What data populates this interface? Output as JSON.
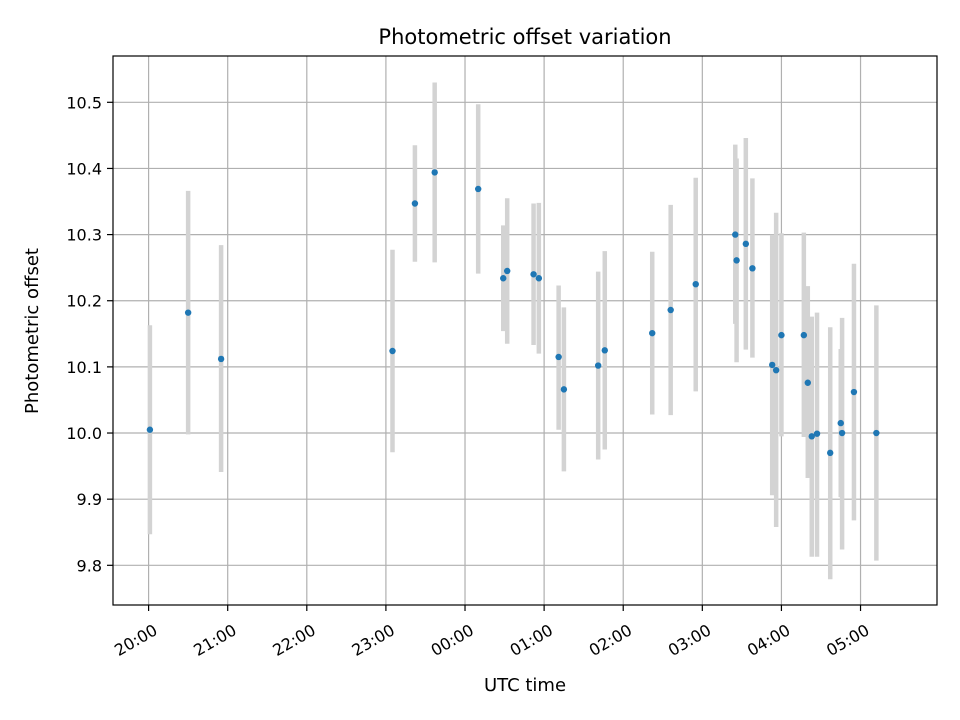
{
  "chart_data": {
    "type": "scatter",
    "title": "Photometric offset variation",
    "xlabel": "UTC time",
    "ylabel": "Photometric offset",
    "x_tick_labels": [
      "20:00",
      "21:00",
      "22:00",
      "23:00",
      "00:00",
      "01:00",
      "02:00",
      "03:00",
      "04:00",
      "05:00"
    ],
    "y_tick_labels": [
      "9.8",
      "9.9",
      "10.0",
      "10.1",
      "10.2",
      "10.3",
      "10.4",
      "10.5"
    ],
    "y_ticks": [
      9.8,
      9.9,
      10.0,
      10.1,
      10.2,
      10.3,
      10.4,
      10.5
    ],
    "ylim": [
      9.74,
      10.57
    ],
    "xlim": [
      "19:33",
      "05:58"
    ],
    "grid": true,
    "colors": {
      "point": "#1f77b4",
      "errorbar": "#d3d3d3",
      "grid": "#b0b0b0",
      "axis": "#000000"
    },
    "points": [
      {
        "x": "20:01",
        "y": 10.005,
        "yerr_low": 9.847,
        "yerr_high": 10.163
      },
      {
        "x": "20:30",
        "y": 10.182,
        "yerr_low": 9.998,
        "yerr_high": 10.366
      },
      {
        "x": "20:55",
        "y": 10.112,
        "yerr_low": 9.941,
        "yerr_high": 10.284
      },
      {
        "x": "23:05",
        "y": 10.124,
        "yerr_low": 9.971,
        "yerr_high": 10.277
      },
      {
        "x": "23:22",
        "y": 10.347,
        "yerr_low": 10.259,
        "yerr_high": 10.435
      },
      {
        "x": "23:37",
        "y": 10.394,
        "yerr_low": 10.258,
        "yerr_high": 10.53
      },
      {
        "x": "00:10",
        "y": 10.369,
        "yerr_low": 10.241,
        "yerr_high": 10.497
      },
      {
        "x": "00:29",
        "y": 10.234,
        "yerr_low": 10.154,
        "yerr_high": 10.314
      },
      {
        "x": "00:32",
        "y": 10.245,
        "yerr_low": 10.135,
        "yerr_high": 10.355
      },
      {
        "x": "00:52",
        "y": 10.24,
        "yerr_low": 10.133,
        "yerr_high": 10.347
      },
      {
        "x": "00:56",
        "y": 10.234,
        "yerr_low": 10.12,
        "yerr_high": 10.348
      },
      {
        "x": "01:11",
        "y": 10.115,
        "yerr_low": 10.005,
        "yerr_high": 10.223
      },
      {
        "x": "01:15",
        "y": 10.066,
        "yerr_low": 9.942,
        "yerr_high": 10.19
      },
      {
        "x": "01:41",
        "y": 10.102,
        "yerr_low": 9.96,
        "yerr_high": 10.244
      },
      {
        "x": "01:46",
        "y": 10.125,
        "yerr_low": 9.975,
        "yerr_high": 10.275
      },
      {
        "x": "02:22",
        "y": 10.151,
        "yerr_low": 10.028,
        "yerr_high": 10.274
      },
      {
        "x": "02:36",
        "y": 10.186,
        "yerr_low": 10.027,
        "yerr_high": 10.345
      },
      {
        "x": "02:55",
        "y": 10.225,
        "yerr_low": 10.063,
        "yerr_high": 10.386
      },
      {
        "x": "03:25",
        "y": 10.3,
        "yerr_low": 10.165,
        "yerr_high": 10.436
      },
      {
        "x": "03:26",
        "y": 10.261,
        "yerr_low": 10.107,
        "yerr_high": 10.415
      },
      {
        "x": "03:33",
        "y": 10.286,
        "yerr_low": 10.126,
        "yerr_high": 10.446
      },
      {
        "x": "03:38",
        "y": 10.249,
        "yerr_low": 10.114,
        "yerr_high": 10.385
      },
      {
        "x": "03:53",
        "y": 10.103,
        "yerr_low": 9.906,
        "yerr_high": 10.3
      },
      {
        "x": "03:56",
        "y": 10.095,
        "yerr_low": 9.858,
        "yerr_high": 10.333
      },
      {
        "x": "04:00",
        "y": 10.148,
        "yerr_low": 9.995,
        "yerr_high": 10.302
      },
      {
        "x": "04:17",
        "y": 10.148,
        "yerr_low": 9.994,
        "yerr_high": 10.303
      },
      {
        "x": "04:20",
        "y": 10.076,
        "yerr_low": 9.932,
        "yerr_high": 10.222
      },
      {
        "x": "04:23",
        "y": 9.995,
        "yerr_low": 9.813,
        "yerr_high": 10.176
      },
      {
        "x": "04:27",
        "y": 9.999,
        "yerr_low": 9.813,
        "yerr_high": 10.182
      },
      {
        "x": "04:37",
        "y": 9.97,
        "yerr_low": 9.779,
        "yerr_high": 10.16
      },
      {
        "x": "04:45",
        "y": 10.015,
        "yerr_low": 9.903,
        "yerr_high": 10.127
      },
      {
        "x": "04:46",
        "y": 10.0,
        "yerr_low": 9.824,
        "yerr_high": 10.174
      },
      {
        "x": "04:55",
        "y": 10.062,
        "yerr_low": 9.868,
        "yerr_high": 10.256
      },
      {
        "x": "05:12",
        "y": 10.0,
        "yerr_low": 9.807,
        "yerr_high": 10.193
      }
    ]
  }
}
